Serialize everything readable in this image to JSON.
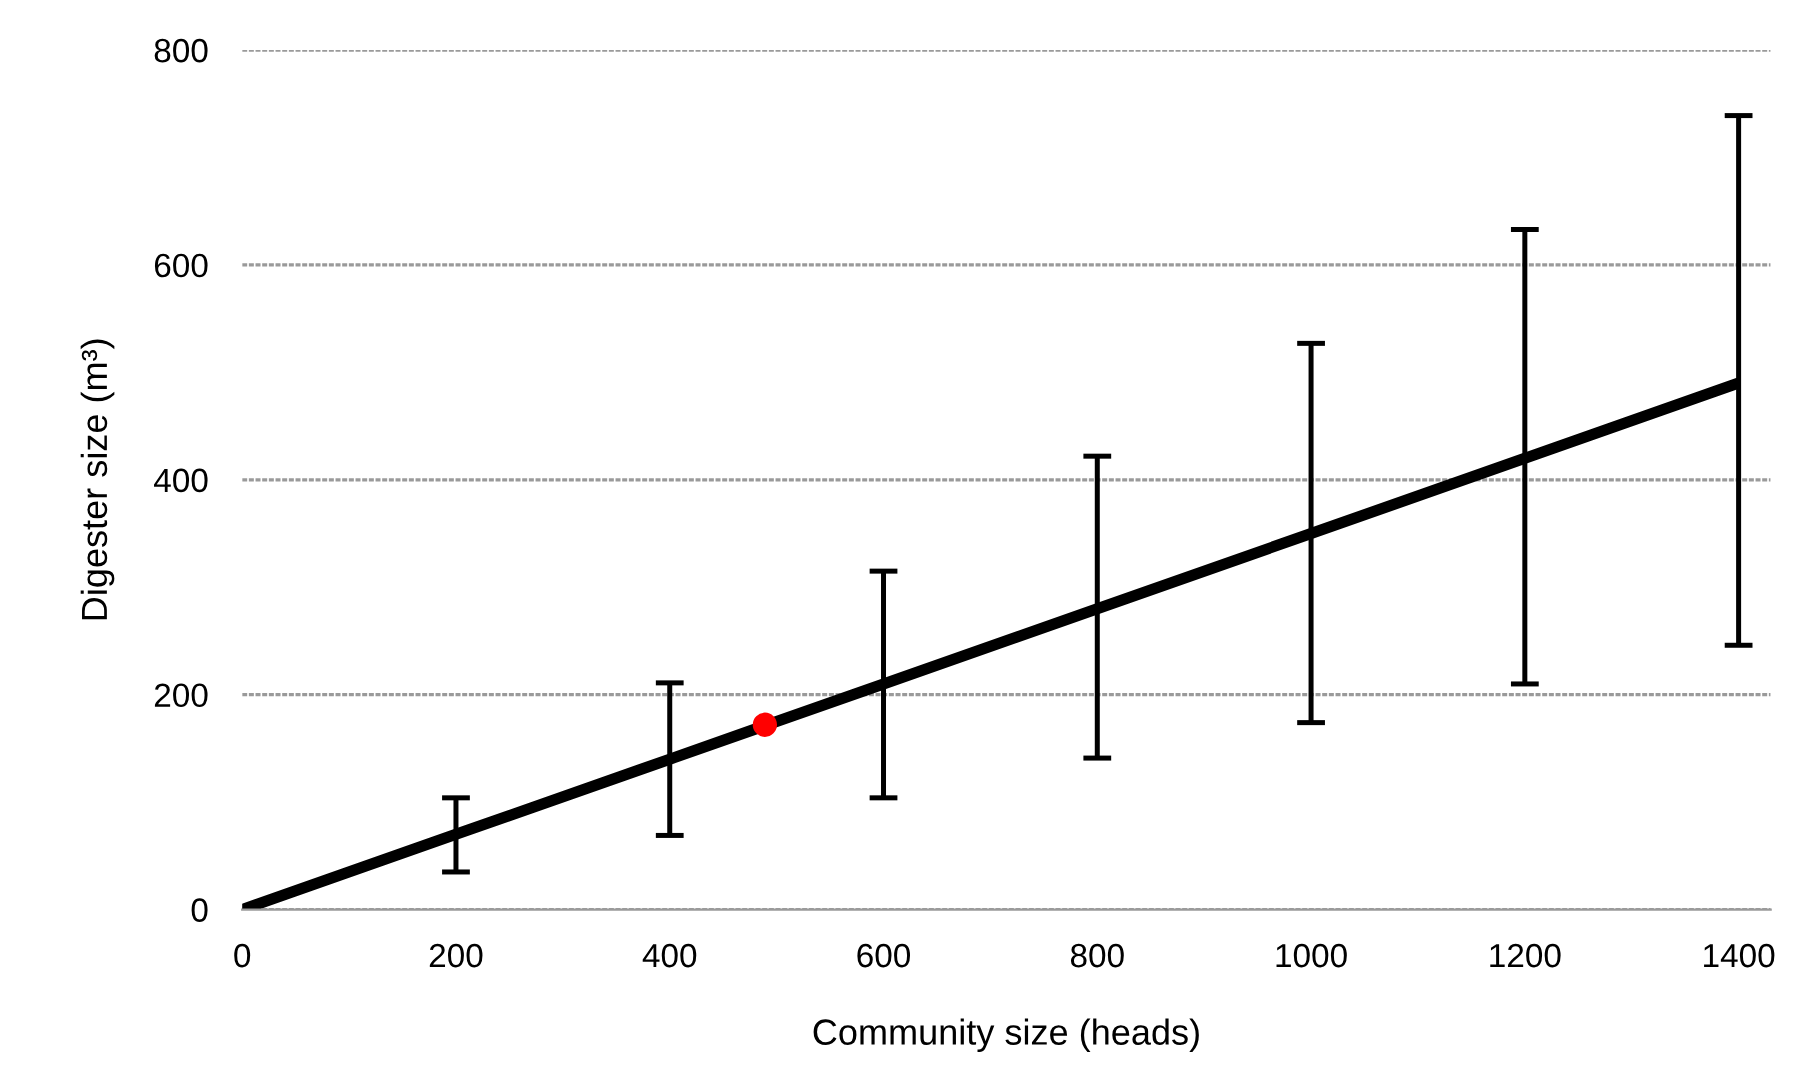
{
  "chart_data": {
    "type": "line",
    "xlabel": "Community size (heads)",
    "ylabel": "Digester size (m³)",
    "xlim": [
      0,
      1430
    ],
    "xticks": [
      0,
      200,
      400,
      600,
      800,
      1000,
      1200,
      1400
    ],
    "ylim": [
      0,
      800
    ],
    "yticks": [
      0,
      200,
      400,
      600,
      800
    ],
    "grid": "y",
    "legend": false,
    "series": [
      {
        "color": "#000000",
        "marker": "none",
        "line_style": "solid",
        "x": [
          0,
          200,
          400,
          600,
          800,
          1000,
          1200,
          1400
        ],
        "values": [
          0,
          70,
          140,
          210,
          280,
          350,
          420,
          490
        ],
        "errors": [
          null,
          [
            35,
            104
          ],
          [
            69,
            211
          ],
          [
            104,
            315
          ],
          [
            141,
            422
          ],
          [
            174,
            527
          ],
          [
            210,
            633
          ],
          [
            246,
            739
          ]
        ]
      },
      {
        "type": "scatter",
        "color": "#ff0000",
        "marker": "circle",
        "x": [
          489
        ],
        "values": [
          172
        ]
      }
    ]
  }
}
